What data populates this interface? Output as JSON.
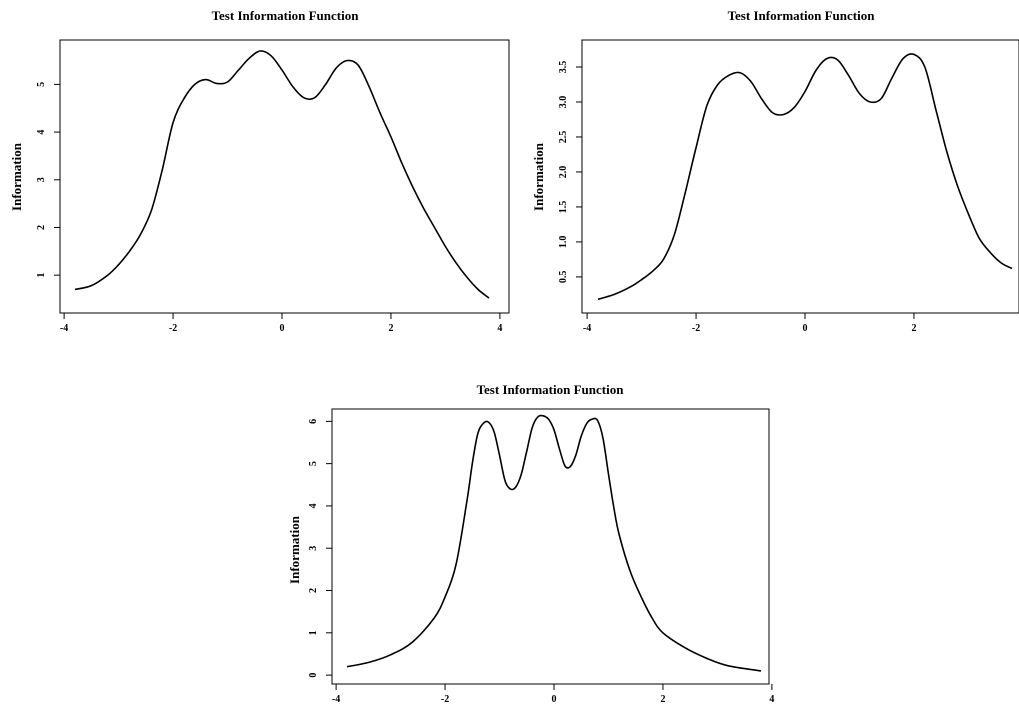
{
  "chart_data": [
    {
      "type": "line",
      "title": "Test Information Function",
      "xlabel": "",
      "ylabel": "Information",
      "xlim": [
        -3.8,
        3.8
      ],
      "ylim": [
        0.5,
        5.7
      ],
      "xticks": [
        -4,
        -2,
        0,
        2,
        4
      ],
      "yticks": [
        1,
        2,
        3,
        4,
        5
      ],
      "series": [
        {
          "x": [
            -3.8,
            -3.5,
            -3.2,
            -3.0,
            -2.8,
            -2.6,
            -2.4,
            -2.2,
            -2.0,
            -1.8,
            -1.6,
            -1.4,
            -1.2,
            -1.0,
            -0.8,
            -0.6,
            -0.4,
            -0.2,
            0.0,
            0.2,
            0.4,
            0.6,
            0.8,
            1.0,
            1.2,
            1.4,
            1.6,
            1.8,
            2.0,
            2.2,
            2.4,
            2.6,
            2.8,
            3.0,
            3.2,
            3.4,
            3.6,
            3.8
          ],
          "y": [
            0.7,
            0.78,
            1.0,
            1.22,
            1.5,
            1.85,
            2.35,
            3.2,
            4.2,
            4.7,
            5.0,
            5.1,
            5.02,
            5.05,
            5.3,
            5.55,
            5.7,
            5.6,
            5.3,
            4.95,
            4.72,
            4.72,
            5.0,
            5.35,
            5.5,
            5.4,
            4.95,
            4.4,
            3.9,
            3.35,
            2.85,
            2.4,
            2.0,
            1.6,
            1.25,
            0.95,
            0.7,
            0.52
          ]
        }
      ]
    },
    {
      "type": "line",
      "title": "Test Information Function",
      "xlabel": "",
      "ylabel": "Information",
      "xlim": [
        -3.8,
        3.8
      ],
      "ylim": [
        0.17,
        3.7
      ],
      "xticks": [
        -4,
        -2,
        0,
        2
      ],
      "yticks": [
        0.5,
        1.0,
        1.5,
        2.0,
        2.5,
        3.0,
        3.5
      ],
      "series": [
        {
          "x": [
            -3.8,
            -3.5,
            -3.2,
            -3.0,
            -2.8,
            -2.6,
            -2.4,
            -2.2,
            -2.0,
            -1.8,
            -1.6,
            -1.4,
            -1.2,
            -1.0,
            -0.8,
            -0.6,
            -0.4,
            -0.2,
            0.0,
            0.2,
            0.4,
            0.6,
            0.8,
            1.0,
            1.2,
            1.4,
            1.6,
            1.8,
            2.0,
            2.2,
            2.4,
            2.6,
            2.8,
            3.0,
            3.2,
            3.4,
            3.6,
            3.8
          ],
          "y": [
            0.18,
            0.25,
            0.36,
            0.46,
            0.58,
            0.75,
            1.1,
            1.7,
            2.35,
            2.95,
            3.25,
            3.38,
            3.42,
            3.3,
            3.05,
            2.85,
            2.82,
            2.92,
            3.15,
            3.45,
            3.62,
            3.6,
            3.38,
            3.12,
            3.0,
            3.05,
            3.35,
            3.62,
            3.68,
            3.5,
            2.9,
            2.3,
            1.8,
            1.4,
            1.05,
            0.85,
            0.7,
            0.62
          ]
        }
      ]
    },
    {
      "type": "line",
      "title": "Test Information Function",
      "xlabel": "",
      "ylabel": "Information",
      "xlim": [
        -3.8,
        3.8
      ],
      "ylim": [
        0.05,
        6.15
      ],
      "xticks": [
        -4,
        -2,
        0,
        2,
        4
      ],
      "yticks": [
        0,
        1,
        2,
        3,
        4,
        5,
        6
      ],
      "series": [
        {
          "x": [
            -3.8,
            -3.4,
            -3.0,
            -2.6,
            -2.2,
            -2.0,
            -1.8,
            -1.6,
            -1.5,
            -1.4,
            -1.3,
            -1.2,
            -1.1,
            -1.0,
            -0.9,
            -0.8,
            -0.7,
            -0.6,
            -0.5,
            -0.4,
            -0.3,
            -0.2,
            -0.1,
            0.0,
            0.1,
            0.2,
            0.3,
            0.4,
            0.5,
            0.6,
            0.7,
            0.8,
            0.9,
            1.0,
            1.1,
            1.2,
            1.4,
            1.6,
            1.8,
            2.0,
            2.4,
            2.8,
            3.2,
            3.8
          ],
          "y": [
            0.2,
            0.3,
            0.48,
            0.78,
            1.35,
            1.85,
            2.6,
            4.1,
            5.0,
            5.7,
            5.95,
            5.98,
            5.75,
            5.2,
            4.6,
            4.4,
            4.45,
            4.75,
            5.3,
            5.85,
            6.1,
            6.13,
            6.05,
            5.8,
            5.35,
            4.95,
            4.93,
            5.2,
            5.65,
            5.95,
            6.05,
            6.02,
            5.6,
            4.75,
            3.95,
            3.3,
            2.45,
            1.85,
            1.35,
            1.0,
            0.65,
            0.4,
            0.22,
            0.1
          ]
        }
      ]
    }
  ]
}
